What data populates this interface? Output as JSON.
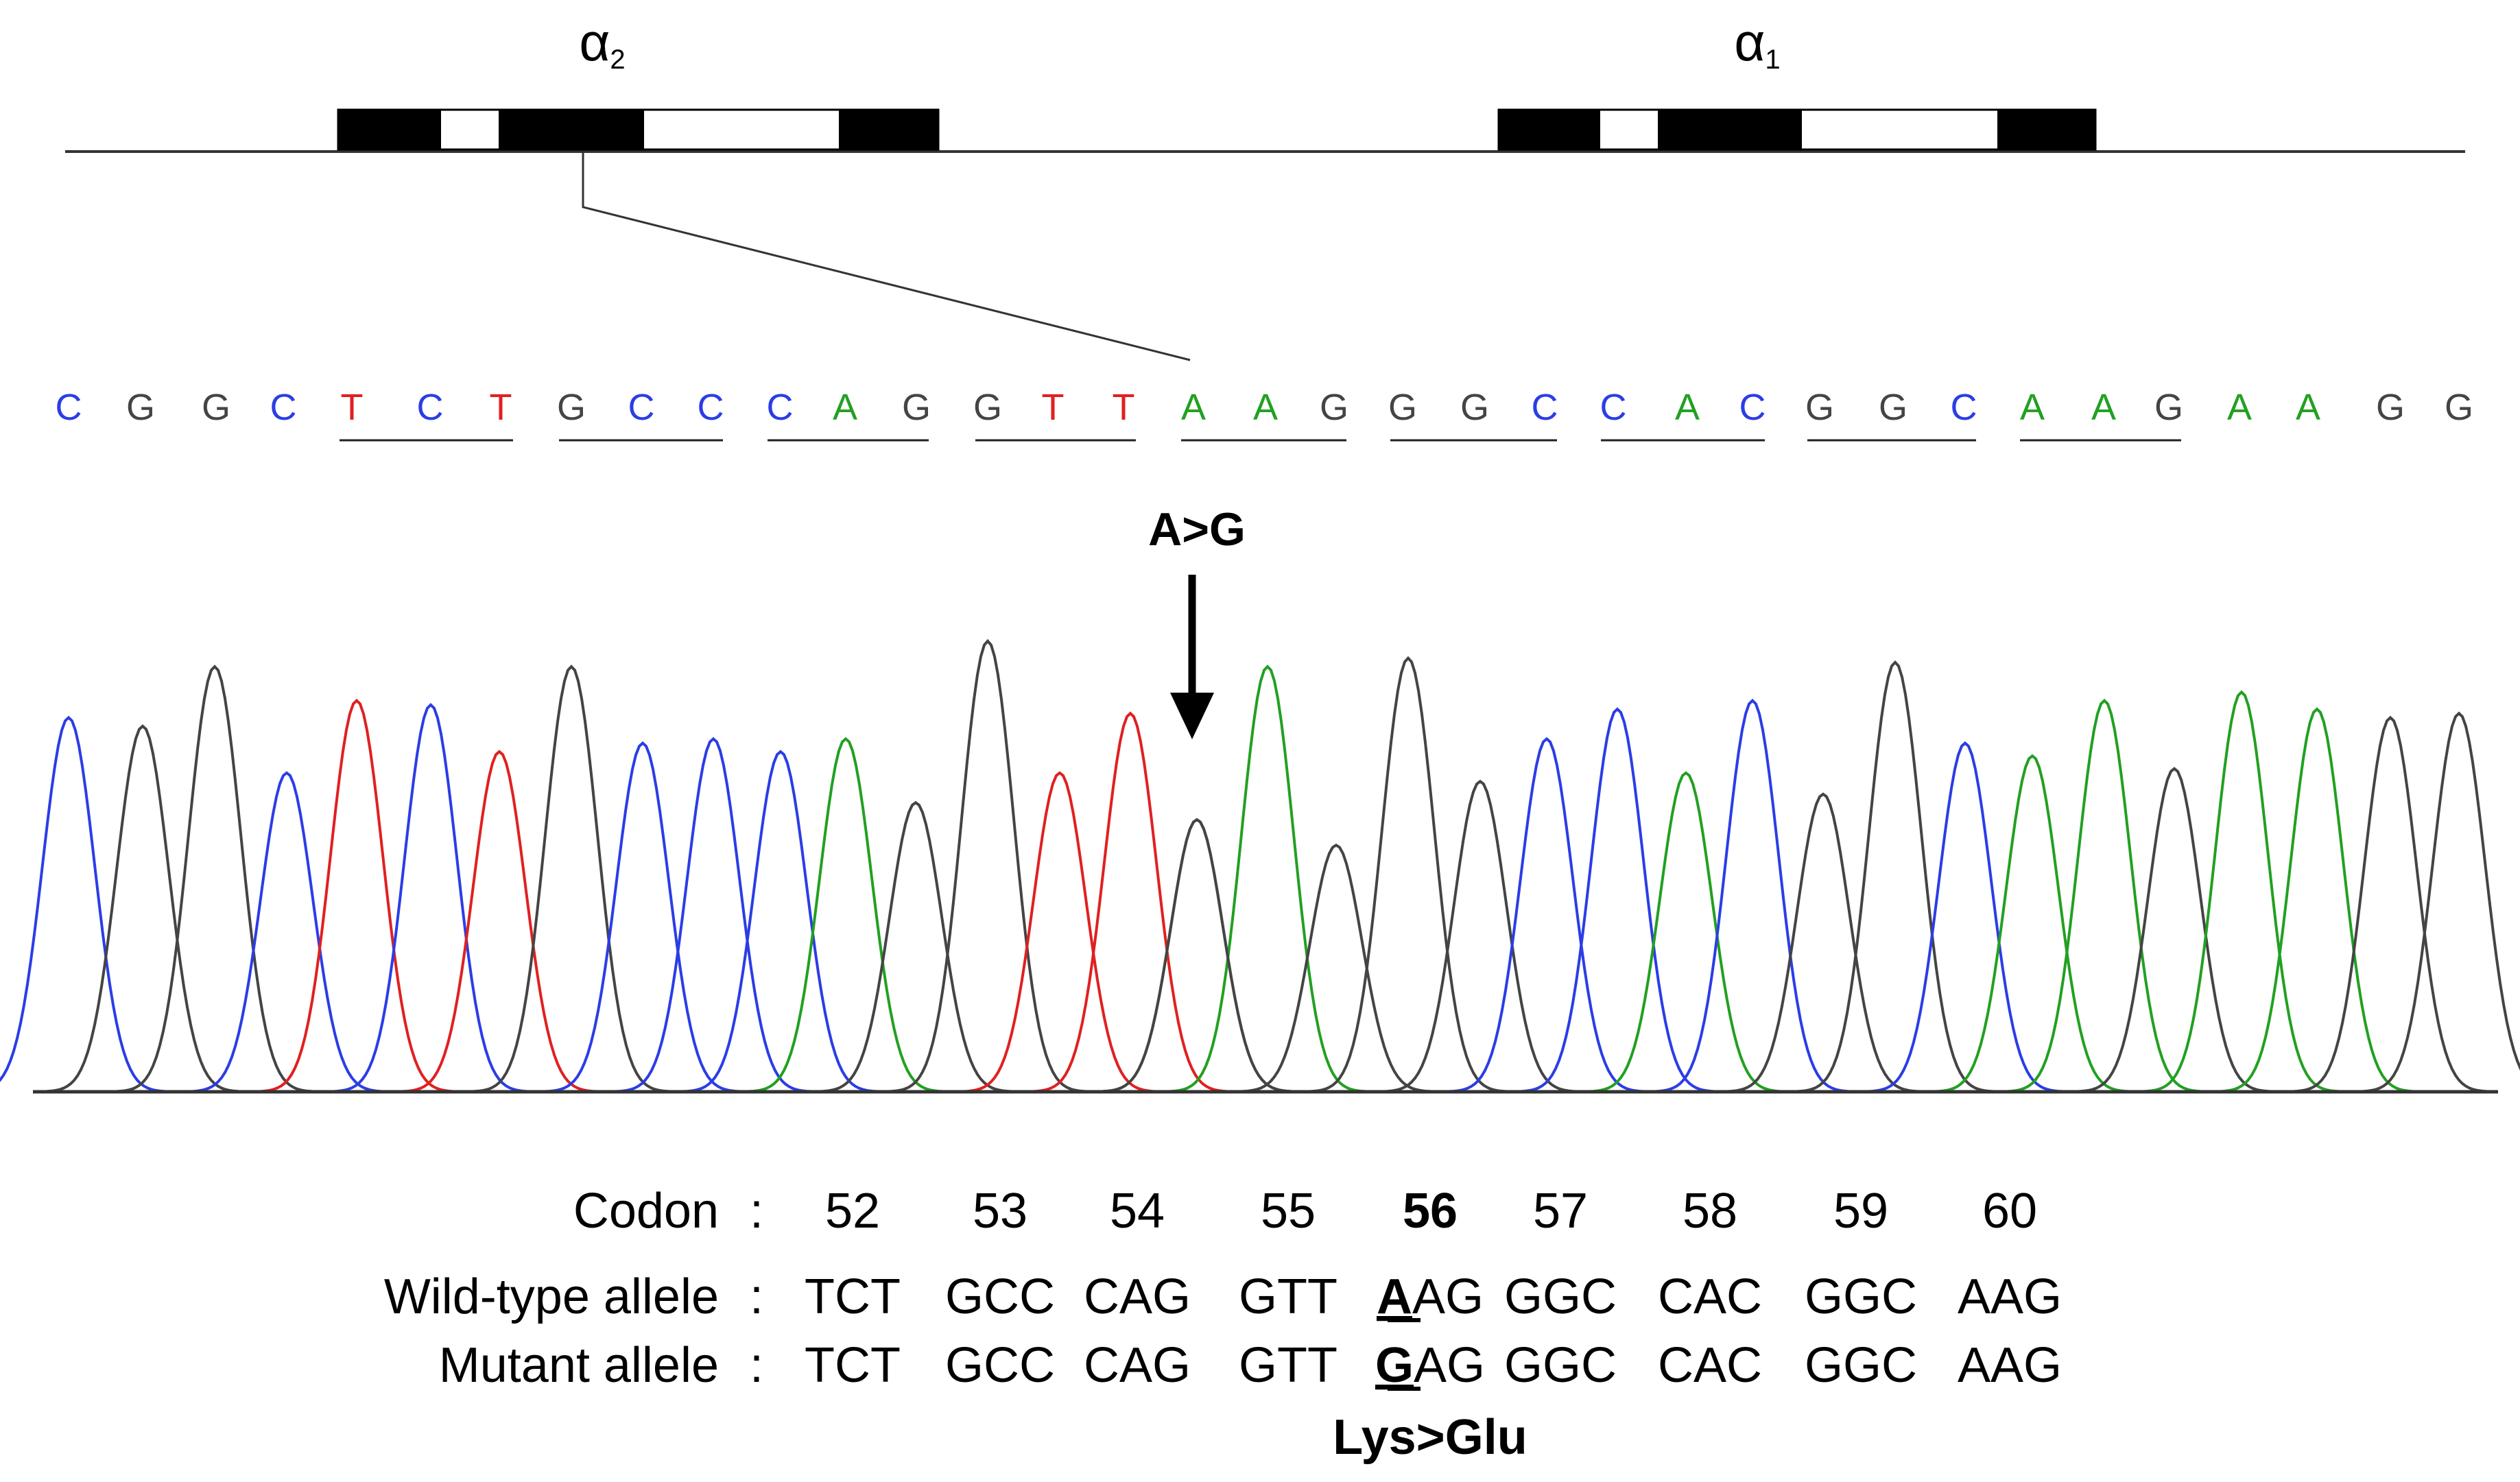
{
  "genes": {
    "alpha2": {
      "symbol": "α",
      "subscript": "2"
    },
    "alpha1": {
      "symbol": "α",
      "subscript": "1"
    }
  },
  "sequence": {
    "bases": [
      "C",
      "G",
      "G",
      "C",
      "T",
      "C",
      "T",
      "G",
      "C",
      "C",
      "C",
      "A",
      "G",
      "G",
      "T",
      "T",
      "A",
      "A",
      "G",
      "G",
      "G",
      "C",
      "C",
      "A",
      "C",
      "G",
      "G",
      "C",
      "A",
      "A",
      "G",
      "A",
      "A",
      "G",
      "G"
    ],
    "colors": {
      "A": "#22a022",
      "C": "#2b3de6",
      "G": "#444444",
      "T": "#e02020"
    }
  },
  "mutation_label": "A>G",
  "chromatogram": {
    "peaks": [
      {
        "base": "C",
        "h": 0.88
      },
      {
        "base": "G",
        "h": 0.86
      },
      {
        "base": "G",
        "h": 1.0
      },
      {
        "base": "C",
        "h": 0.75
      },
      {
        "base": "T",
        "h": 0.92
      },
      {
        "base": "C",
        "h": 0.91
      },
      {
        "base": "T",
        "h": 0.8
      },
      {
        "base": "G",
        "h": 1.0
      },
      {
        "base": "C",
        "h": 0.82
      },
      {
        "base": "C",
        "h": 0.83
      },
      {
        "base": "C",
        "h": 0.8
      },
      {
        "base": "A",
        "h": 0.83
      },
      {
        "base": "G",
        "h": 0.68
      },
      {
        "base": "G",
        "h": 1.06
      },
      {
        "base": "T",
        "h": 0.75
      },
      {
        "base": "T",
        "h": 0.89
      },
      {
        "base": "A",
        "h": 0.64
      },
      {
        "base": "A",
        "h": 1.0
      },
      {
        "base": "G",
        "h": 0.58
      },
      {
        "base": "G",
        "h": 1.02
      },
      {
        "base": "G",
        "h": 0.73
      },
      {
        "base": "C",
        "h": 0.83
      },
      {
        "base": "C",
        "h": 0.9
      },
      {
        "base": "A",
        "h": 0.75
      },
      {
        "base": "C",
        "h": 0.92
      },
      {
        "base": "G",
        "h": 0.7
      },
      {
        "base": "G",
        "h": 1.01
      },
      {
        "base": "C",
        "h": 0.82
      },
      {
        "base": "A",
        "h": 0.79
      },
      {
        "base": "A",
        "h": 0.92
      },
      {
        "base": "G",
        "h": 0.76
      },
      {
        "base": "A",
        "h": 0.94
      },
      {
        "base": "A",
        "h": 0.9
      },
      {
        "base": "G",
        "h": 0.88
      },
      {
        "base": "G",
        "h": 0.89
      }
    ],
    "secondary_peak": {
      "base": "G",
      "h": 0.64
    }
  },
  "table": {
    "codon_label": "Codon",
    "wild_label": "Wild-type allele",
    "mutant_label": "Mutant allele",
    "separator": ":",
    "codons": [
      {
        "num": "52",
        "wt": "TCT",
        "mut": "TCT"
      },
      {
        "num": "53",
        "wt": "GCC",
        "mut": "GCC"
      },
      {
        "num": "54",
        "wt": "CAG",
        "mut": "CAG"
      },
      {
        "num": "55",
        "wt": "GTT",
        "mut": "GTT"
      },
      {
        "num": "56",
        "wt_first": "A",
        "wt_rest": "AG",
        "mut_first": "G",
        "mut_rest": "AG",
        "highlight": true
      },
      {
        "num": "57",
        "wt": "GGC",
        "mut": "GGC"
      },
      {
        "num": "58",
        "wt": "CAC",
        "mut": "CAC"
      },
      {
        "num": "59",
        "wt": "GGC",
        "mut": "GGC"
      },
      {
        "num": "60",
        "wt": "AAG",
        "mut": "AAG"
      }
    ],
    "aa_change": "Lys>Glu"
  }
}
